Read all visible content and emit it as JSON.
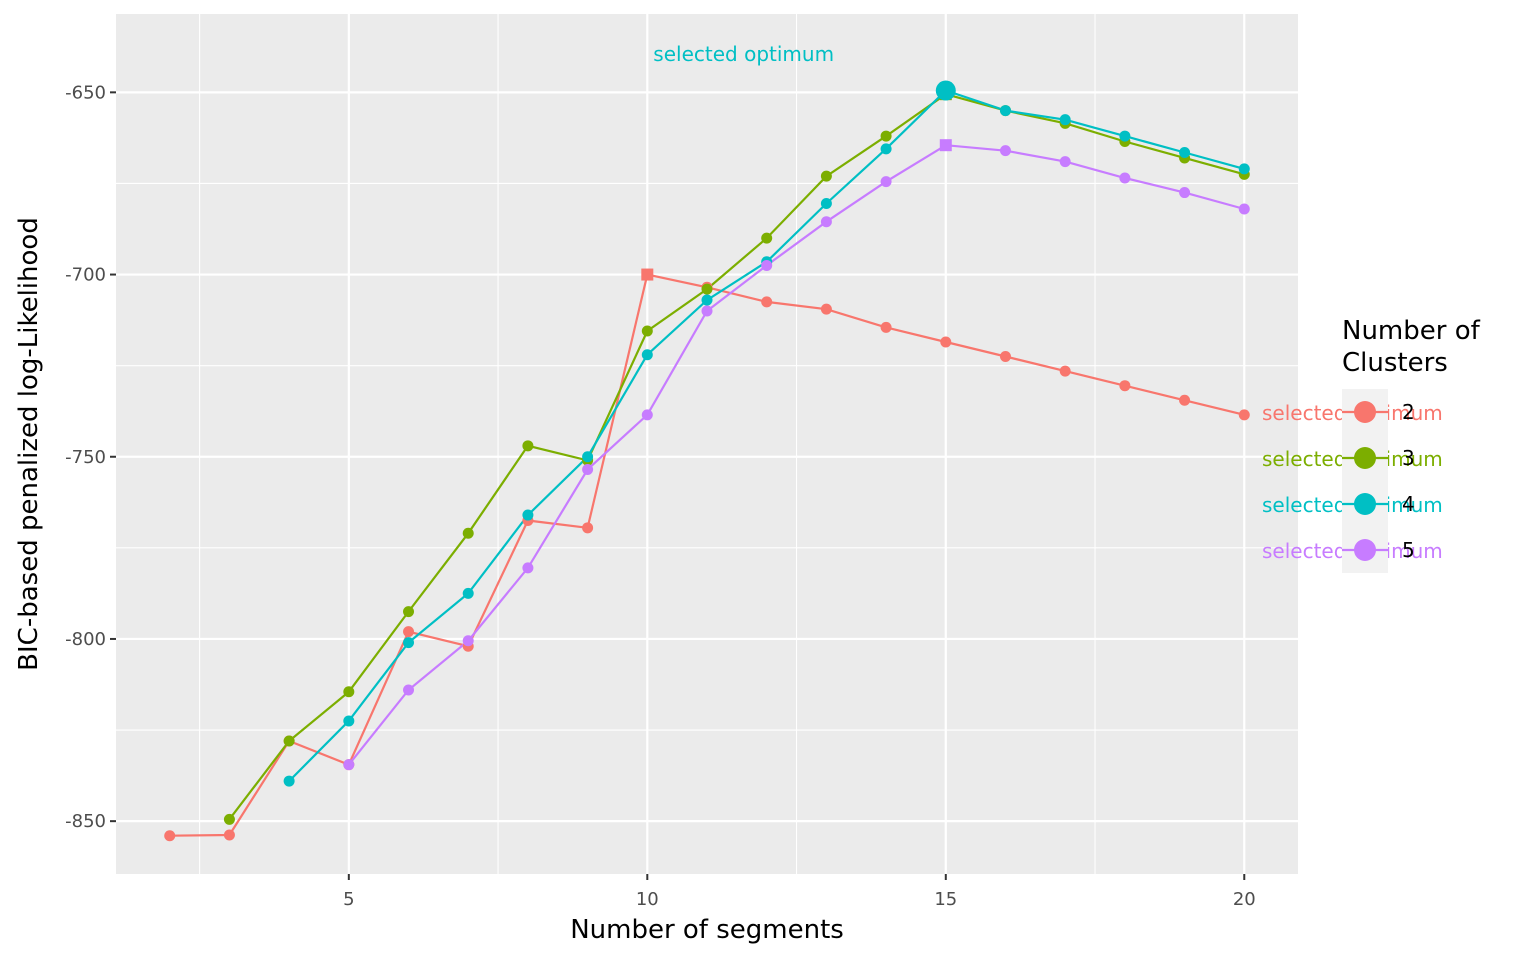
{
  "chart_data": {
    "type": "line",
    "title": "",
    "xlabel": "Number of segments",
    "ylabel": "BIC-based penalized log-Likelihood",
    "xlim": [
      1.1,
      20.9
    ],
    "ylim": [
      -864.5,
      -628.5
    ],
    "x_ticks": [
      5,
      10,
      15,
      20
    ],
    "y_ticks": [
      -850,
      -800,
      -750,
      -700,
      -650
    ],
    "x_tick_labels": [
      "5",
      "10",
      "15",
      "20"
    ],
    "y_tick_labels": [
      "-850",
      "-800",
      "-750",
      "-700",
      "-650"
    ],
    "grid": true,
    "legend": {
      "title_line1": "Number of",
      "title_line2": "Clusters",
      "placement": "right"
    },
    "series": [
      {
        "name": "2",
        "color": "#F8766D",
        "x": [
          2,
          3,
          4,
          5,
          6,
          7,
          8,
          9,
          10,
          11,
          12,
          13,
          14,
          15,
          16,
          17,
          18,
          19,
          20
        ],
        "values": [
          -854,
          -853.8,
          -828,
          -834.5,
          -798,
          -802,
          -767.5,
          -769.5,
          -700,
          -703.5,
          -707.5,
          -709.5,
          -714.5,
          -718.5,
          -722.5,
          -726.5,
          -730.5,
          -734.5,
          -738.5
        ],
        "selected_x": 10
      },
      {
        "name": "3",
        "color": "#7CAE00",
        "x": [
          3,
          4,
          5,
          6,
          7,
          8,
          9,
          10,
          11,
          12,
          13,
          14,
          15,
          16,
          17,
          18,
          19,
          20
        ],
        "values": [
          -849.5,
          -828,
          -814.5,
          -792.5,
          -771,
          -747,
          -751,
          -715.5,
          -704,
          -690,
          -673,
          -662,
          -650.5,
          -655,
          -658.5,
          -663.5,
          -668,
          -672.5
        ],
        "selected_x": 15
      },
      {
        "name": "4",
        "color": "#00BFC4",
        "x": [
          4,
          5,
          6,
          7,
          8,
          9,
          10,
          11,
          12,
          13,
          14,
          15,
          16,
          17,
          18,
          19,
          20
        ],
        "values": [
          -839,
          -822.5,
          -801,
          -787.5,
          -766,
          -750,
          -722,
          -707,
          -696.5,
          -680.5,
          -665.5,
          -649.5,
          -655,
          -657.5,
          -662,
          -666.5,
          -671
        ],
        "selected_x": 15
      },
      {
        "name": "5",
        "color": "#C77CFF",
        "x": [
          5,
          6,
          7,
          8,
          9,
          10,
          11,
          12,
          13,
          14,
          15,
          16,
          17,
          18,
          19,
          20
        ],
        "values": [
          -834.5,
          -814,
          -800.5,
          -780.5,
          -753.5,
          -738.5,
          -710,
          -697.5,
          -685.5,
          -674.5,
          -664.5,
          -666,
          -669,
          -673.5,
          -677.5,
          -682
        ],
        "selected_x": 15
      }
    ],
    "annotations": [
      {
        "text": "selected optimum",
        "series": "4",
        "placement": "above-plot",
        "color": "#00BFC4"
      },
      {
        "text": "selected optimum",
        "series": "2",
        "placement": "right-of-line-end",
        "color": "#F8766D"
      },
      {
        "text": "selected optimum",
        "series": "3",
        "placement": "right-of-line-end",
        "color": "#7CAE00"
      },
      {
        "text": "selected optimum",
        "series": "4",
        "placement": "right-of-line-end",
        "color": "#00BFC4"
      },
      {
        "text": "selected optimum",
        "series": "5",
        "placement": "right-of-line-end",
        "color": "#C77CFF"
      }
    ],
    "panel_color": "#EBEBEB",
    "grid_color": "#FFFFFF",
    "text_color": "#4D4D4D"
  }
}
